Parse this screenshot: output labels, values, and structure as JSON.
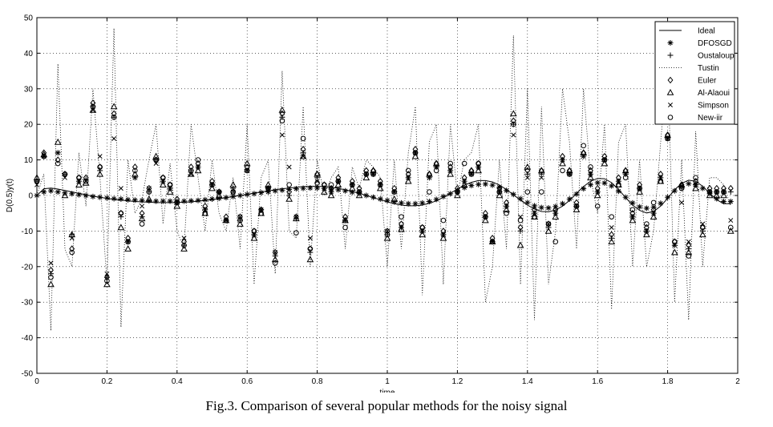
{
  "caption": "Fig.3. Comparison of several popular methods for the noisy signal",
  "chart_data": {
    "type": "line",
    "xlabel": "time",
    "ylabel": "D(0.5)y(t)",
    "xlim": [
      0,
      2
    ],
    "ylim": [
      -50,
      50
    ],
    "xticks": [
      0,
      0.2,
      0.4,
      0.6,
      0.8,
      1,
      1.2,
      1.4,
      1.6,
      1.8,
      2
    ],
    "xtick_labels": [
      "0",
      "0.2",
      "0.4",
      "0.6",
      "0.8",
      "1",
      "1.2",
      "1.4",
      "1.6",
      "1.8",
      "2"
    ],
    "yticks": [
      -50,
      -40,
      -30,
      -20,
      -10,
      0,
      10,
      20,
      30,
      40,
      50
    ],
    "ytick_labels": [
      "-50",
      "-40",
      "-30",
      "-20",
      "-10",
      "0",
      "10",
      "20",
      "30",
      "40",
      "50"
    ],
    "grid": true,
    "legend_position": "top-right",
    "x": [
      0.0,
      0.02,
      0.04,
      0.06,
      0.08,
      0.1,
      0.12,
      0.14,
      0.16,
      0.18,
      0.2,
      0.22,
      0.24,
      0.26,
      0.28,
      0.3,
      0.32,
      0.34,
      0.36,
      0.38,
      0.4,
      0.42,
      0.44,
      0.46,
      0.48,
      0.5,
      0.52,
      0.54,
      0.56,
      0.58,
      0.6,
      0.62,
      0.64,
      0.66,
      0.68,
      0.7,
      0.72,
      0.74,
      0.76,
      0.78,
      0.8,
      0.82,
      0.84,
      0.86,
      0.88,
      0.9,
      0.92,
      0.94,
      0.96,
      0.98,
      1.0,
      1.02,
      1.04,
      1.06,
      1.08,
      1.1,
      1.12,
      1.14,
      1.16,
      1.18,
      1.2,
      1.22,
      1.24,
      1.26,
      1.28,
      1.3,
      1.32,
      1.34,
      1.36,
      1.38,
      1.4,
      1.42,
      1.44,
      1.46,
      1.48,
      1.5,
      1.52,
      1.54,
      1.56,
      1.58,
      1.6,
      1.62,
      1.64,
      1.66,
      1.68,
      1.7,
      1.72,
      1.74,
      1.76,
      1.78,
      1.8,
      1.82,
      1.84,
      1.86,
      1.88,
      1.9,
      1.92,
      1.94,
      1.96,
      1.98
    ],
    "series": [
      {
        "name": "Ideal",
        "style": "line",
        "values": [
          0.0,
          1.9,
          2.1,
          1.8,
          1.4,
          1.0,
          0.6,
          0.2,
          -0.2,
          -0.5,
          -0.8,
          -1.1,
          -1.3,
          -1.5,
          -1.7,
          -1.8,
          -1.9,
          -2.0,
          -2.0,
          -2.0,
          -2.0,
          -1.9,
          -1.8,
          -1.6,
          -1.4,
          -1.2,
          -0.9,
          -0.6,
          -0.3,
          0.0,
          0.3,
          0.7,
          1.0,
          1.3,
          1.6,
          1.9,
          2.1,
          2.3,
          2.5,
          2.6,
          2.6,
          2.5,
          2.3,
          2.0,
          1.6,
          1.1,
          0.6,
          0.0,
          -0.6,
          -1.2,
          -1.8,
          -2.3,
          -2.7,
          -2.9,
          -2.9,
          -2.7,
          -2.2,
          -1.5,
          -0.5,
          0.6,
          1.8,
          2.9,
          3.7,
          4.2,
          4.2,
          3.8,
          2.9,
          1.7,
          0.2,
          -1.3,
          -2.7,
          -3.8,
          -4.5,
          -4.6,
          -4.1,
          -3.0,
          -1.4,
          0.6,
          2.5,
          4.0,
          4.8,
          4.7,
          3.6,
          1.7,
          -0.6,
          -2.7,
          -4.2,
          -4.9,
          -4.5,
          -3.0,
          -0.8,
          1.6,
          3.4,
          4.3,
          4.0,
          2.6,
          0.6,
          -1.2,
          -2.3,
          -2.3
        ]
      },
      {
        "name": "DFOSGD",
        "style": "marker",
        "marker": "asterisk",
        "values": [
          0.0,
          1.0,
          1.3,
          1.0,
          0.7,
          0.5,
          0.2,
          0.0,
          -0.3,
          -0.5,
          -0.7,
          -0.9,
          -1.0,
          -1.2,
          -1.3,
          -1.4,
          -1.5,
          -1.6,
          -1.6,
          -1.6,
          -1.6,
          -1.6,
          -1.5,
          -1.4,
          -1.2,
          -1.0,
          -0.8,
          -0.6,
          -0.3,
          0.0,
          0.3,
          0.5,
          0.8,
          1.0,
          1.3,
          1.5,
          1.7,
          1.9,
          2.0,
          2.1,
          2.1,
          2.0,
          1.8,
          1.6,
          1.3,
          0.9,
          0.5,
          0.0,
          -0.5,
          -1.0,
          -1.4,
          -1.8,
          -2.1,
          -2.3,
          -2.3,
          -2.1,
          -1.7,
          -1.1,
          -0.3,
          0.5,
          1.4,
          2.2,
          2.8,
          3.1,
          3.2,
          2.9,
          2.3,
          1.4,
          0.3,
          -0.9,
          -2.0,
          -2.9,
          -3.4,
          -3.5,
          -3.1,
          -2.3,
          -1.0,
          0.4,
          1.9,
          3.0,
          3.6,
          3.5,
          2.7,
          1.2,
          -0.5,
          -2.1,
          -3.2,
          -3.6,
          -3.3,
          -2.2,
          -0.5,
          1.3,
          2.6,
          3.3,
          3.0,
          2.0,
          0.5,
          -0.9,
          -1.7,
          -1.7
        ]
      },
      {
        "name": "Oustaloup",
        "style": "marker",
        "marker": "plus",
        "values": [
          4.0,
          11.0,
          -22.0,
          12.0,
          6.0,
          -11.0,
          4.0,
          4.5,
          25.0,
          7.0,
          -23.0,
          22.0,
          -6.0,
          -13.0,
          5.0,
          -6.0,
          1.0,
          10.0,
          4.0,
          2.0,
          -2.0,
          -14.0,
          7.0,
          8.0,
          -4.0,
          3.0,
          1.0,
          -7.0,
          2.0,
          -7.0,
          7.0,
          -11.0,
          -4.0,
          2.0,
          -17.0,
          22.0,
          0.0,
          -6.5,
          12.0,
          -16.0,
          5.0,
          2.0,
          1.0,
          4.0,
          -7.0,
          3.0,
          1.0,
          6.0,
          6.0,
          3.0,
          -11.0,
          1.0,
          -9.0,
          5.0,
          12.0,
          -10.0,
          5.0,
          8.0,
          -11.0,
          7.0,
          1.0,
          4.0,
          6.0,
          8.0,
          -6.0,
          -13.0,
          1.0,
          -3.0,
          20.0,
          -10.0,
          6.0,
          -5.0,
          6.0,
          -9.0,
          -5.0,
          10.0,
          6.0,
          -3.0,
          11.0,
          6.0,
          1.0,
          10.0,
          -12.0,
          4.0,
          6.0,
          -6.0,
          2.0,
          -10.0,
          -5.0,
          5.0,
          16.0,
          -14.0,
          2.0,
          -15.0,
          3.0,
          -10.0,
          1.0,
          1.0,
          1.0,
          1.0
        ]
      },
      {
        "name": "Tustin",
        "style": "dotted",
        "values": [
          0.0,
          6.0,
          -38.0,
          37.0,
          -15.0,
          -20.0,
          12.0,
          -3.0,
          30.0,
          5.0,
          -25.0,
          47.0,
          -37.0,
          10.0,
          -5.0,
          -1.0,
          10.0,
          20.0,
          -8.0,
          9.0,
          -10.0,
          -15.0,
          20.0,
          5.0,
          -10.0,
          10.0,
          -5.0,
          -10.0,
          5.0,
          -15.0,
          20.0,
          -25.0,
          5.0,
          10.0,
          -22.0,
          35.0,
          -10.0,
          -12.0,
          25.0,
          -20.0,
          10.0,
          0.0,
          5.0,
          8.0,
          -15.0,
          8.0,
          2.0,
          10.0,
          8.0,
          5.0,
          -20.0,
          10.0,
          -15.0,
          12.0,
          25.0,
          -28.0,
          15.0,
          20.0,
          -25.0,
          20.0,
          0.0,
          10.0,
          12.0,
          20.0,
          -30.0,
          -20.0,
          10.0,
          -15.0,
          45.0,
          -25.0,
          30.0,
          -35.0,
          25.0,
          -25.0,
          -10.0,
          30.0,
          15.0,
          -15.0,
          30.0,
          5.0,
          -5.0,
          20.0,
          -32.0,
          15.0,
          20.0,
          -20.0,
          10.0,
          -20.0,
          -10.0,
          15.0,
          38.0,
          -30.0,
          10.0,
          -35.0,
          18.0,
          -20.0,
          5.0,
          5.0,
          3.0,
          -3.0
        ]
      },
      {
        "name": "Euler",
        "style": "marker",
        "marker": "diamond",
        "values": [
          4.0,
          12.0,
          -21.0,
          10.0,
          6.0,
          -15.0,
          5.0,
          5.0,
          26.0,
          8.0,
          -23.0,
          23.0,
          -5.0,
          -12.0,
          8.0,
          -5.0,
          2.0,
          10.0,
          5.0,
          3.0,
          -1.0,
          -13.0,
          8.0,
          9.0,
          -3.0,
          4.0,
          1.0,
          -6.0,
          1.0,
          -6.0,
          8.0,
          -10.0,
          -4.0,
          2.0,
          -16.0,
          23.0,
          1.0,
          -6.0,
          13.0,
          -15.0,
          6.0,
          3.0,
          2.0,
          5.0,
          -6.0,
          4.0,
          2.0,
          7.0,
          7.0,
          4.0,
          -10.0,
          2.0,
          -8.0,
          6.0,
          13.0,
          -9.0,
          6.0,
          9.0,
          -10.0,
          8.0,
          2.0,
          5.0,
          7.0,
          9.0,
          -5.0,
          -12.0,
          2.0,
          -2.0,
          21.0,
          -9.0,
          7.0,
          -4.0,
          7.0,
          -8.0,
          -4.0,
          11.0,
          7.0,
          -2.0,
          12.0,
          7.0,
          2.0,
          11.0,
          -11.0,
          5.0,
          7.0,
          -5.0,
          3.0,
          -9.0,
          -4.0,
          6.0,
          17.0,
          -13.0,
          3.0,
          -14.0,
          4.0,
          -9.0,
          2.0,
          2.0,
          2.0,
          2.0
        ]
      },
      {
        "name": "Al-Alaoui",
        "style": "marker",
        "marker": "triangle",
        "values": [
          5.0,
          11.5,
          -25.0,
          15.0,
          0.0,
          -11.0,
          3.0,
          3.5,
          24.0,
          6.0,
          -25.0,
          25.0,
          -9.0,
          -15.0,
          6.0,
          -6.5,
          -1.0,
          11.0,
          3.0,
          1.0,
          -3.0,
          -15.0,
          6.0,
          7.0,
          -5.0,
          2.0,
          0.0,
          -7.0,
          3.0,
          -8.0,
          9.0,
          -12.0,
          -5.0,
          3.0,
          -18.0,
          24.0,
          -1.0,
          -6.5,
          11.0,
          -18.0,
          6.0,
          1.0,
          0.0,
          3.0,
          -7.0,
          2.0,
          0.0,
          5.0,
          7.0,
          2.0,
          -12.0,
          -1.0,
          -9.5,
          4.0,
          11.0,
          -11.0,
          6.0,
          9.0,
          -12.0,
          6.0,
          0.0,
          3.0,
          7.0,
          7.0,
          -7.0,
          -13.0,
          0.0,
          -4.0,
          23.0,
          -14.0,
          8.0,
          -6.0,
          7.0,
          -10.0,
          -6.0,
          9.0,
          7.0,
          -4.0,
          12.0,
          5.0,
          0.0,
          9.0,
          -13.0,
          3.0,
          7.0,
          -7.0,
          1.0,
          -11.0,
          -6.0,
          4.0,
          17.0,
          -16.0,
          3.0,
          -16.0,
          2.0,
          -11.0,
          0.0,
          0.0,
          0.0,
          -10.0
        ]
      },
      {
        "name": "Simpson",
        "style": "marker",
        "marker": "x",
        "values": [
          3.0,
          11.0,
          -19.0,
          12.0,
          5.0,
          -12.0,
          4.0,
          4.0,
          24.0,
          11.0,
          -22.0,
          16.0,
          2.0,
          -13.0,
          5.0,
          -3.0,
          2.0,
          9.0,
          4.0,
          2.0,
          -2.0,
          -12.0,
          6.0,
          8.0,
          -4.0,
          3.0,
          1.0,
          -7.0,
          1.0,
          -6.0,
          7.0,
          -11.0,
          -4.0,
          2.0,
          -16.0,
          17.0,
          8.0,
          -6.0,
          11.0,
          -12.0,
          4.0,
          2.0,
          1.0,
          4.0,
          -7.0,
          3.0,
          1.0,
          6.0,
          6.0,
          3.0,
          -10.0,
          1.0,
          -9.0,
          5.0,
          12.0,
          -10.0,
          5.0,
          8.0,
          -11.0,
          7.0,
          1.0,
          4.0,
          6.0,
          8.0,
          -6.0,
          -13.0,
          1.0,
          -3.0,
          17.0,
          -6.0,
          5.0,
          -5.0,
          5.0,
          -8.0,
          -5.0,
          10.0,
          6.0,
          -3.0,
          11.0,
          6.0,
          1.0,
          10.0,
          -9.0,
          4.0,
          6.0,
          -6.0,
          2.0,
          -10.0,
          -5.0,
          5.0,
          16.0,
          -14.0,
          -2.0,
          -13.0,
          3.0,
          -8.0,
          1.0,
          1.0,
          1.0,
          -7.0
        ]
      },
      {
        "name": "New-iir",
        "style": "marker",
        "marker": "circle",
        "values": [
          4.0,
          11.0,
          -23.0,
          9.0,
          6.0,
          -16.0,
          5.0,
          4.0,
          25.0,
          8.0,
          -24.0,
          22.0,
          -5.0,
          -13.0,
          7.0,
          -8.0,
          1.0,
          10.0,
          5.0,
          3.0,
          -2.0,
          -14.0,
          7.0,
          10.0,
          -5.0,
          3.0,
          1.0,
          -7.0,
          1.0,
          -7.0,
          7.0,
          -10.0,
          -5.0,
          2.0,
          -19.0,
          21.0,
          3.0,
          -10.5,
          16.0,
          -15.0,
          3.5,
          3.0,
          3.0,
          4.0,
          -9.0,
          3.0,
          1.0,
          6.0,
          6.0,
          3.0,
          -11.0,
          1.0,
          -6.0,
          7.0,
          12.0,
          -9.0,
          1.0,
          7.0,
          -7.0,
          9.0,
          1.0,
          9.0,
          6.0,
          9.0,
          -6.0,
          -13.0,
          1.0,
          -5.0,
          20.0,
          -7.0,
          1.0,
          -6.0,
          1.0,
          -8.0,
          -13.0,
          7.0,
          6.0,
          -3.0,
          14.0,
          8.0,
          -3.0,
          10.0,
          -6.0,
          3.0,
          5.0,
          -4.0,
          2.0,
          -8.0,
          -2.0,
          4.0,
          16.0,
          -13.0,
          2.0,
          -17.0,
          5.0,
          -9.0,
          1.0,
          1.0,
          1.0,
          -9.0
        ]
      }
    ]
  }
}
